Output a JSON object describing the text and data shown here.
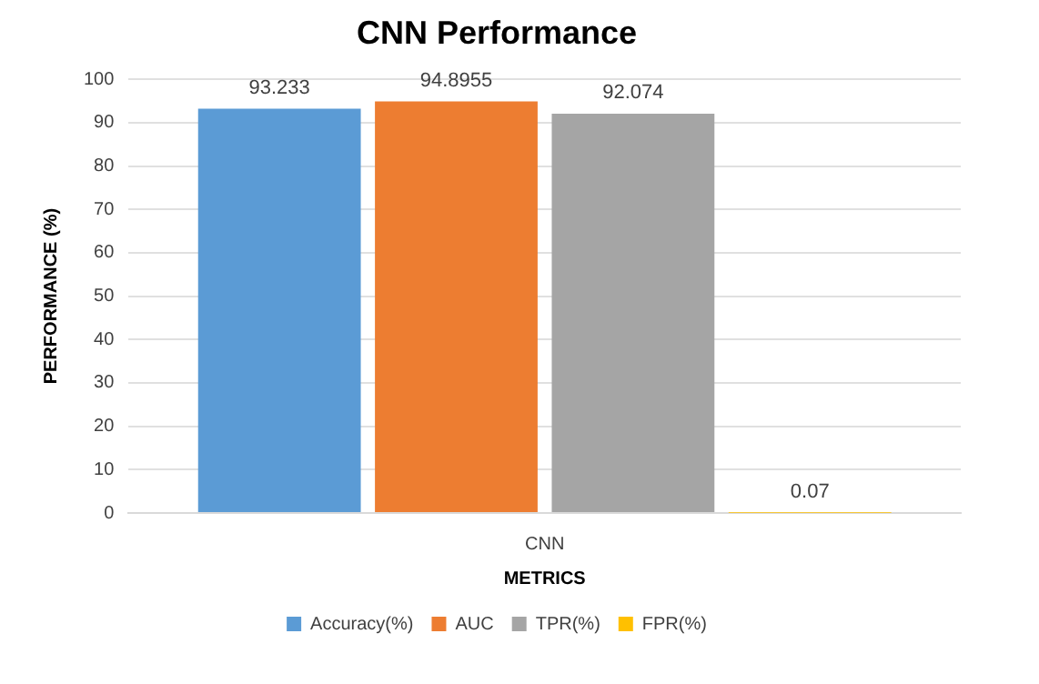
{
  "chart_data": {
    "type": "bar",
    "title": "CNN Performance",
    "xlabel": "METRICS",
    "ylabel": "PERFORMANCE (%)",
    "categories": [
      "CNN"
    ],
    "series": [
      {
        "name": "Accuracy(%)",
        "color": "#5b9bd5",
        "values": [
          93.233
        ]
      },
      {
        "name": "AUC",
        "color": "#ed7d31",
        "values": [
          94.8955
        ]
      },
      {
        "name": "TPR(%)",
        "color": "#a5a5a5",
        "values": [
          92.074
        ]
      },
      {
        "name": "FPR(%)",
        "color": "#ffc000",
        "values": [
          0.07
        ]
      }
    ],
    "ylim": [
      0,
      100
    ],
    "yticks": [
      0,
      10,
      20,
      30,
      40,
      50,
      60,
      70,
      80,
      90,
      100
    ],
    "grid": "y",
    "legend": "bottom",
    "data_labels": true
  }
}
